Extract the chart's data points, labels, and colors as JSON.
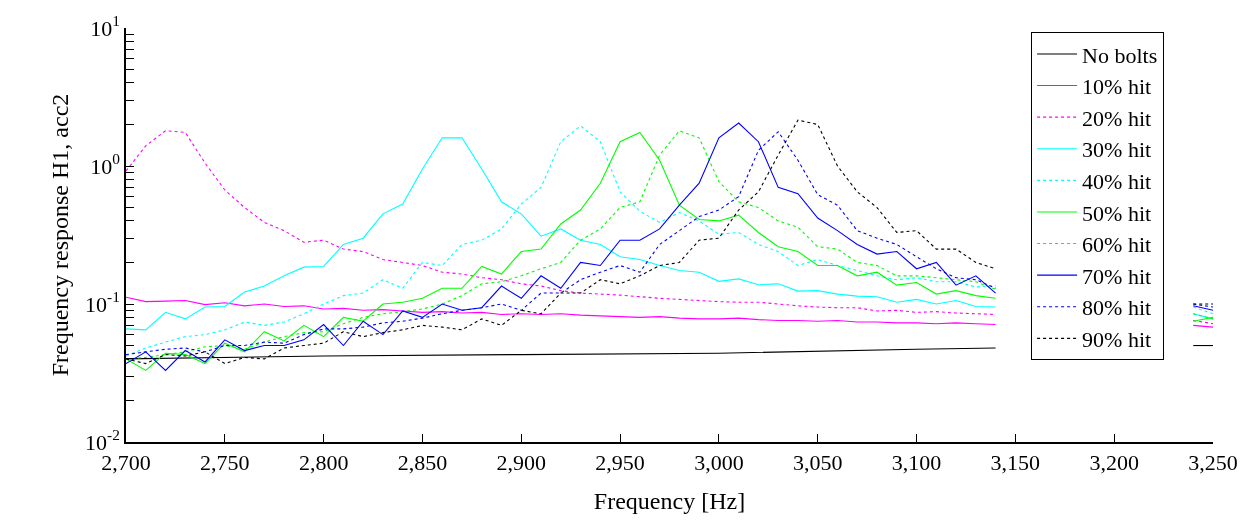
{
  "chart_data": {
    "type": "line",
    "xlabel": "Frequency [Hz]",
    "ylabel": "Frequency response H1, acc2",
    "x": [
      2700,
      2710,
      2720,
      2730,
      2740,
      2750,
      2760,
      2770,
      2780,
      2790,
      2800,
      2810,
      2820,
      2830,
      2840,
      2850,
      2860,
      2870,
      2880,
      2890,
      2900,
      2910,
      2920,
      2930,
      2940,
      2950,
      2960,
      2970,
      2980,
      2990,
      3000,
      3010,
      3020,
      3030,
      3040,
      3050,
      3060,
      3070,
      3080,
      3090,
      3100,
      3110,
      3120,
      3130,
      3140,
      3150,
      3160,
      3170,
      3180,
      3190,
      3200,
      3210,
      3220,
      3230,
      3240,
      3250
    ],
    "log": "y",
    "grid": false,
    "legend": "top right",
    "xlim": [
      2700,
      3250
    ],
    "ylim": [
      0.01,
      10
    ],
    "xticks": [
      {
        "value": 2700,
        "label": "2,700"
      },
      {
        "value": 2750,
        "label": "2,750"
      },
      {
        "value": 2800,
        "label": "2,800"
      },
      {
        "value": 2850,
        "label": "2,850"
      },
      {
        "value": 2900,
        "label": "2,900"
      },
      {
        "value": 2950,
        "label": "2,950"
      },
      {
        "value": 3000,
        "label": "3,000"
      },
      {
        "value": 3050,
        "label": "3,050"
      },
      {
        "value": 3100,
        "label": "3,100"
      },
      {
        "value": 3150,
        "label": "3,150"
      },
      {
        "value": 3200,
        "label": "3,200"
      },
      {
        "value": 3250,
        "label": "3,250"
      }
    ],
    "yticks": [
      {
        "value": 0.01,
        "label": "10$^{-2}$"
      },
      {
        "value": 0.02,
        "label": null
      },
      {
        "value": 0.03,
        "label": null
      },
      {
        "value": 0.04,
        "label": null
      },
      {
        "value": 0.05,
        "label": null
      },
      {
        "value": 0.06,
        "label": null
      },
      {
        "value": 0.07,
        "label": null
      },
      {
        "value": 0.08,
        "label": null
      },
      {
        "value": 0.09,
        "label": null
      },
      {
        "value": 0.1,
        "label": "10$^{-1}$"
      },
      {
        "value": 0.2,
        "label": null
      },
      {
        "value": 0.3,
        "label": null
      },
      {
        "value": 0.4,
        "label": null
      },
      {
        "value": 0.5,
        "label": null
      },
      {
        "value": 0.6,
        "label": null
      },
      {
        "value": 0.7,
        "label": null
      },
      {
        "value": 0.8,
        "label": null
      },
      {
        "value": 0.9,
        "label": null
      },
      {
        "value": 1,
        "label": "10$^{0}$"
      },
      {
        "value": 2,
        "label": null
      },
      {
        "value": 3,
        "label": null
      },
      {
        "value": 4,
        "label": null
      },
      {
        "value": 5,
        "label": null
      },
      {
        "value": 6,
        "label": null
      },
      {
        "value": 7,
        "label": null
      },
      {
        "value": 8,
        "label": null
      },
      {
        "value": 9,
        "label": null
      },
      {
        "value": 10,
        "label": "10$^{1}$"
      }
    ],
    "series": [
      {
        "name": "No bolts",
        "color": "#000000",
        "line_style": "solid",
        "x": [
          2700,
          2800,
          2900,
          3000,
          3100,
          3140,
          3150,
          3240,
          3250
        ],
        "values": [
          0.04,
          0.042,
          0.043,
          0.044,
          0.047,
          0.048,
          null,
          0.05,
          0.05
        ]
      },
      {
        "name": "10% hit",
        "color": "#ff00ff",
        "line_style": "solid",
        "values": [
          0.112,
          0.104,
          0.105,
          0.106,
          0.099,
          0.102,
          0.097,
          0.1,
          0.096,
          0.097,
          0.092,
          0.093,
          0.09,
          0.091,
          0.089,
          0.087,
          0.088,
          0.086,
          0.087,
          0.084,
          0.085,
          0.084,
          0.085,
          0.083,
          0.082,
          0.081,
          0.08,
          0.081,
          0.079,
          0.078,
          0.078,
          0.079,
          0.077,
          0.076,
          0.076,
          0.075,
          0.076,
          0.074,
          0.074,
          0.073,
          0.073,
          0.072,
          0.073,
          0.072,
          0.071,
          null,
          null,
          null,
          null,
          null,
          null,
          null,
          null,
          null,
          0.07,
          0.068
        ]
      },
      {
        "name": "20% hit",
        "color": "#ff00ff",
        "line_style": "dotted",
        "values": [
          0.92,
          1.4,
          1.8,
          1.75,
          1.05,
          0.67,
          0.5,
          0.39,
          0.34,
          0.28,
          0.29,
          0.25,
          0.24,
          0.21,
          0.2,
          0.19,
          0.17,
          0.165,
          0.155,
          0.15,
          0.14,
          0.135,
          0.125,
          0.12,
          0.118,
          0.116,
          0.113,
          0.11,
          0.108,
          0.106,
          0.104,
          0.103,
          0.103,
          0.1,
          0.097,
          0.095,
          0.094,
          0.094,
          0.089,
          0.09,
          0.087,
          0.088,
          0.086,
          0.085,
          0.084,
          null,
          null,
          null,
          null,
          null,
          null,
          null,
          null,
          null,
          0.076,
          0.072
        ]
      },
      {
        "name": "30% hit",
        "color": "#00ffff",
        "line_style": "solid",
        "values": [
          0.066,
          0.065,
          0.087,
          0.078,
          0.095,
          0.096,
          0.122,
          0.135,
          0.16,
          0.185,
          0.187,
          0.27,
          0.3,
          0.45,
          0.53,
          0.95,
          1.6,
          1.6,
          0.95,
          0.55,
          0.45,
          0.31,
          0.35,
          0.29,
          0.27,
          0.22,
          0.21,
          0.19,
          0.175,
          0.17,
          0.146,
          0.152,
          0.138,
          0.14,
          0.124,
          0.125,
          0.118,
          0.114,
          0.113,
          0.103,
          0.108,
          0.1,
          0.106,
          0.096,
          0.095,
          null,
          null,
          null,
          null,
          null,
          null,
          null,
          null,
          null,
          0.085,
          0.078
        ]
      },
      {
        "name": "40% hit",
        "color": "#00ffff",
        "line_style": "dotted",
        "values": [
          0.042,
          0.048,
          0.053,
          0.058,
          0.06,
          0.065,
          0.074,
          0.07,
          0.074,
          0.085,
          0.1,
          0.115,
          0.12,
          0.15,
          0.13,
          0.2,
          0.19,
          0.27,
          0.29,
          0.35,
          0.53,
          0.7,
          1.5,
          1.95,
          1.5,
          0.65,
          0.47,
          0.39,
          0.46,
          0.4,
          0.32,
          0.33,
          0.27,
          0.24,
          0.19,
          0.21,
          0.19,
          0.175,
          0.16,
          0.15,
          0.155,
          0.145,
          0.145,
          0.133,
          0.136,
          null,
          null,
          null,
          null,
          null,
          null,
          null,
          null,
          null,
          0.095,
          0.085
        ]
      },
      {
        "name": "50% hit",
        "color": "#00ff00",
        "line_style": "solid",
        "values": [
          0.04,
          0.033,
          0.044,
          0.043,
          0.037,
          0.052,
          0.045,
          0.063,
          0.054,
          0.07,
          0.058,
          0.08,
          0.075,
          0.1,
          0.103,
          0.11,
          0.13,
          0.13,
          0.187,
          0.165,
          0.24,
          0.25,
          0.38,
          0.48,
          0.75,
          1.5,
          1.75,
          1.1,
          0.52,
          0.41,
          0.4,
          0.44,
          0.33,
          0.26,
          0.24,
          0.19,
          0.19,
          0.16,
          0.17,
          0.137,
          0.143,
          0.118,
          0.125,
          0.115,
          0.11,
          null,
          null,
          null,
          null,
          null,
          null,
          null,
          null,
          null,
          0.075,
          0.08
        ]
      },
      {
        "name": "60% hit",
        "color": "#00ff00",
        "line_style": "dotted",
        "values": [
          0.04,
          0.041,
          0.043,
          0.045,
          0.049,
          0.05,
          0.047,
          0.053,
          0.058,
          0.062,
          0.063,
          0.072,
          0.08,
          0.085,
          0.088,
          0.092,
          0.1,
          0.115,
          0.14,
          0.145,
          0.16,
          0.18,
          0.2,
          0.29,
          0.35,
          0.5,
          0.55,
          1.2,
          1.8,
          1.6,
          0.77,
          0.55,
          0.5,
          0.4,
          0.36,
          0.26,
          0.25,
          0.2,
          0.19,
          0.16,
          0.16,
          0.155,
          0.15,
          0.145,
          0.128,
          null,
          null,
          null,
          null,
          null,
          null,
          null,
          null,
          null,
          0.085,
          0.078
        ]
      },
      {
        "name": "70% hit",
        "color": "#0000ff",
        "line_style": "solid",
        "values": [
          0.037,
          0.045,
          0.033,
          0.046,
          0.038,
          0.055,
          0.046,
          0.05,
          0.05,
          0.055,
          0.071,
          0.05,
          0.075,
          0.06,
          0.089,
          0.08,
          0.1,
          0.09,
          0.094,
          0.135,
          0.11,
          0.16,
          0.13,
          0.2,
          0.19,
          0.29,
          0.29,
          0.35,
          0.52,
          0.75,
          1.6,
          2.05,
          1.5,
          0.7,
          0.63,
          0.42,
          0.34,
          0.27,
          0.23,
          0.24,
          0.18,
          0.2,
          0.137,
          0.16,
          0.12,
          null,
          null,
          null,
          null,
          null,
          null,
          null,
          null,
          null,
          0.097,
          0.09
        ]
      },
      {
        "name": "80% hit",
        "color": "#0000ff",
        "line_style": "dotted",
        "values": [
          0.043,
          0.045,
          0.047,
          0.048,
          0.045,
          0.05,
          0.05,
          0.053,
          0.052,
          0.06,
          0.066,
          0.066,
          0.068,
          0.073,
          0.075,
          0.079,
          0.085,
          0.09,
          0.094,
          0.1,
          0.09,
          0.12,
          0.12,
          0.15,
          0.17,
          0.19,
          0.17,
          0.27,
          0.34,
          0.43,
          0.48,
          0.6,
          1.3,
          1.77,
          1.1,
          0.62,
          0.52,
          0.34,
          0.3,
          0.27,
          0.22,
          0.18,
          0.155,
          0.15,
          0.13,
          null,
          null,
          null,
          null,
          null,
          null,
          null,
          null,
          null,
          0.1,
          0.095
        ]
      },
      {
        "name": "90% hit",
        "color": "#000000",
        "line_style": "dotted",
        "values": [
          0.04,
          0.037,
          0.043,
          0.042,
          0.045,
          0.037,
          0.041,
          0.04,
          0.048,
          0.05,
          0.052,
          0.063,
          0.058,
          0.062,
          0.065,
          0.07,
          0.068,
          0.065,
          0.078,
          0.07,
          0.09,
          0.085,
          0.12,
          0.12,
          0.15,
          0.14,
          0.16,
          0.19,
          0.2,
          0.29,
          0.3,
          0.48,
          0.65,
          1.2,
          2.15,
          2.0,
          1.0,
          0.65,
          0.5,
          0.33,
          0.34,
          0.25,
          0.25,
          0.2,
          0.18,
          null,
          null,
          null,
          null,
          null,
          null,
          null,
          null,
          null,
          0.1,
          0.1
        ]
      }
    ]
  }
}
